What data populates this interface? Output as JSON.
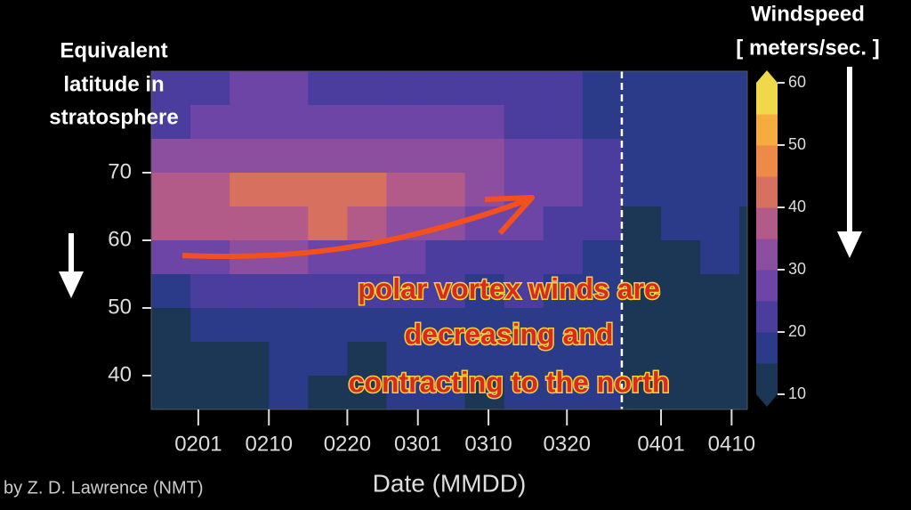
{
  "chart_data": {
    "type": "contour",
    "y_title": [
      "Equivalent",
      "latitude in",
      "stratosphere"
    ],
    "colorbar_title": [
      "Windspeed",
      "[ meters/sec. ]"
    ],
    "x_label": "Date (MMDD)",
    "credit": "by Z. D. Lawrence (NMT)",
    "annotation": [
      "polar vortex winds are",
      "decreasing and",
      "contracting to the north"
    ],
    "xlim": [
      26,
      102
    ],
    "ylim": [
      35,
      85
    ],
    "xticks": [
      {
        "value": 32,
        "label": "0201"
      },
      {
        "value": 41,
        "label": "0210"
      },
      {
        "value": 51,
        "label": "0220"
      },
      {
        "value": 60,
        "label": "0301"
      },
      {
        "value": 69,
        "label": "0310"
      },
      {
        "value": 79,
        "label": "0320"
      },
      {
        "value": 91,
        "label": "0401"
      },
      {
        "value": 100,
        "label": "0410"
      }
    ],
    "yticks": [
      40,
      50,
      60,
      70
    ],
    "marker_date": 86,
    "x": [
      28.5,
      33.5,
      38.5,
      43.5,
      48.5,
      53.5,
      58.5,
      63.5,
      68.5,
      73.5,
      78.5,
      83.5,
      88.5,
      93.5,
      98.5,
      103.5
    ],
    "y": [
      82.5,
      77.5,
      72.5,
      67.5,
      62.5,
      57.5,
      52.5,
      47.5,
      42.5,
      37.5
    ],
    "z": [
      [
        22,
        22,
        25,
        25,
        23,
        23,
        22,
        21,
        22,
        22,
        20,
        18,
        16,
        17,
        16,
        15
      ],
      [
        24,
        26,
        28,
        28,
        27,
        27,
        26,
        26,
        28,
        24,
        22,
        19,
        15,
        17,
        18,
        16
      ],
      [
        30,
        32,
        33,
        34,
        33,
        33,
        32,
        31,
        32,
        27,
        27,
        22,
        15,
        17,
        19,
        16
      ],
      [
        36,
        38,
        40,
        40,
        42,
        41,
        38,
        35,
        33,
        28,
        27,
        24,
        15,
        16,
        17,
        15
      ],
      [
        35,
        37,
        38,
        39,
        40,
        38,
        34,
        30,
        28,
        25,
        22,
        20,
        14,
        15,
        16,
        14
      ],
      [
        25,
        28,
        30,
        30,
        28,
        26,
        25,
        24,
        23,
        22,
        20,
        18,
        14,
        14,
        15,
        13
      ],
      [
        18,
        22,
        24,
        24,
        22,
        21,
        20,
        20,
        19,
        20,
        18,
        17,
        13,
        14,
        14,
        13
      ],
      [
        13,
        15,
        18,
        19,
        17,
        16,
        18,
        17,
        16,
        18,
        17,
        16,
        13,
        13,
        14,
        12
      ],
      [
        12,
        12,
        14,
        16,
        15,
        14,
        16,
        17,
        15,
        17,
        16,
        16,
        13,
        12,
        13,
        12
      ],
      [
        11,
        11,
        12,
        15,
        14,
        13,
        15,
        16,
        14,
        16,
        15,
        15,
        12,
        12,
        12,
        11
      ]
    ],
    "levels": [
      10,
      15,
      20,
      25,
      30,
      35,
      40,
      45,
      50,
      55,
      60
    ],
    "colors": [
      "#1c3656",
      "#2c3a8a",
      "#4a3d9e",
      "#6c45a6",
      "#8c4e9e",
      "#b35b88",
      "#d8705f",
      "#ee8a48",
      "#f5ab3e",
      "#efd84a"
    ],
    "colorbar_ticks": [
      10,
      20,
      30,
      40,
      50,
      60
    ]
  }
}
